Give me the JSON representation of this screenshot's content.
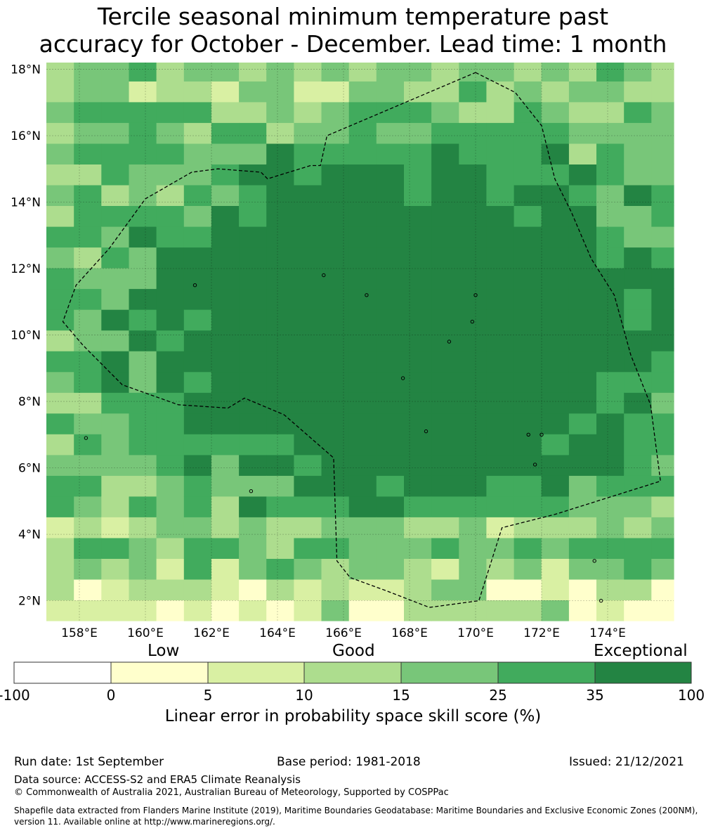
{
  "title": {
    "line1": "Tercile seasonal minimum temperature past",
    "line2": "accuracy for October - December. Lead time: 1 month"
  },
  "map": {
    "lon_range": [
      157.0,
      176.0
    ],
    "lat_range": [
      1.4,
      18.2
    ],
    "cell_deg": 0.833,
    "lat_ticks": [
      {
        "value": 2,
        "label": "2°N"
      },
      {
        "value": 4,
        "label": "4°N"
      },
      {
        "value": 6,
        "label": "6°N"
      },
      {
        "value": 8,
        "label": "8°N"
      },
      {
        "value": 10,
        "label": "10°N"
      },
      {
        "value": 12,
        "label": "12°N"
      },
      {
        "value": 14,
        "label": "14°N"
      },
      {
        "value": 16,
        "label": "16°N"
      },
      {
        "value": 18,
        "label": "18°N"
      }
    ],
    "lon_ticks": [
      {
        "value": 158,
        "label": "158°E"
      },
      {
        "value": 160,
        "label": "160°E"
      },
      {
        "value": 162,
        "label": "162°E"
      },
      {
        "value": 164,
        "label": "164°E"
      },
      {
        "value": 166,
        "label": "166°E"
      },
      {
        "value": 168,
        "label": "168°E"
      },
      {
        "value": 170,
        "label": "170°E"
      },
      {
        "value": 172,
        "label": "172°E"
      },
      {
        "value": 174,
        "label": "174°E"
      }
    ],
    "eez_boundary": [
      [
        170.0,
        17.9
      ],
      [
        171.2,
        17.3
      ],
      [
        172.0,
        16.3
      ],
      [
        172.4,
        14.7
      ],
      [
        172.9,
        13.7
      ],
      [
        173.5,
        12.3
      ],
      [
        174.2,
        11.2
      ],
      [
        174.7,
        9.4
      ],
      [
        175.3,
        7.9
      ],
      [
        175.6,
        5.6
      ],
      [
        172.4,
        4.6
      ],
      [
        170.8,
        4.2
      ],
      [
        170.1,
        2.0
      ],
      [
        168.6,
        1.8
      ],
      [
        167.3,
        2.3
      ],
      [
        166.2,
        2.7
      ],
      [
        165.8,
        3.2
      ],
      [
        165.7,
        6.3
      ],
      [
        164.2,
        7.6
      ],
      [
        163.0,
        8.1
      ],
      [
        162.5,
        7.8
      ],
      [
        161.0,
        7.9
      ],
      [
        159.3,
        8.5
      ],
      [
        158.1,
        9.7
      ],
      [
        157.5,
        10.4
      ],
      [
        157.9,
        11.5
      ],
      [
        158.9,
        12.6
      ],
      [
        160.0,
        14.1
      ],
      [
        161.4,
        14.9
      ],
      [
        162.2,
        15.0
      ],
      [
        163.5,
        14.9
      ],
      [
        163.7,
        14.7
      ],
      [
        165.0,
        15.1
      ],
      [
        165.3,
        15.1
      ],
      [
        165.5,
        16.0
      ],
      [
        170.0,
        17.9
      ]
    ]
  },
  "colorbar": {
    "labels_top": {
      "low": "Low",
      "good": "Good",
      "exceptional": "Exceptional"
    },
    "ticks": [
      "-100",
      "0",
      "5",
      "10",
      "15",
      "25",
      "35",
      "100"
    ],
    "colors": [
      "#ffffff",
      "#ffffcc",
      "#d9f0a3",
      "#addd8e",
      "#78c679",
      "#41ab5d",
      "#238443"
    ],
    "axis_label": "Linear error in probability space skill score (%)"
  },
  "footer": {
    "run_date": "Run date: 1st September",
    "base_period": "Base period: 1981-2018",
    "issued": "Issued: 21/12/2021",
    "data_source": "Data source: ACCESS-S2 and ERA5 Climate Reanalysis",
    "copyright": "© Commonwealth of Australia 2021, Australian Bureau of Meteorology, Supported by COSPPac",
    "shapefile_line1": "Shapefile data extracted from Flanders Marine Institute (2019), Maritime Boundaries Geodatabase: Maritime Boundaries and Exclusive Economic Zones (200NM),",
    "shapefile_line2": "version 11. Available online at http://www.marineregions.org/."
  }
}
